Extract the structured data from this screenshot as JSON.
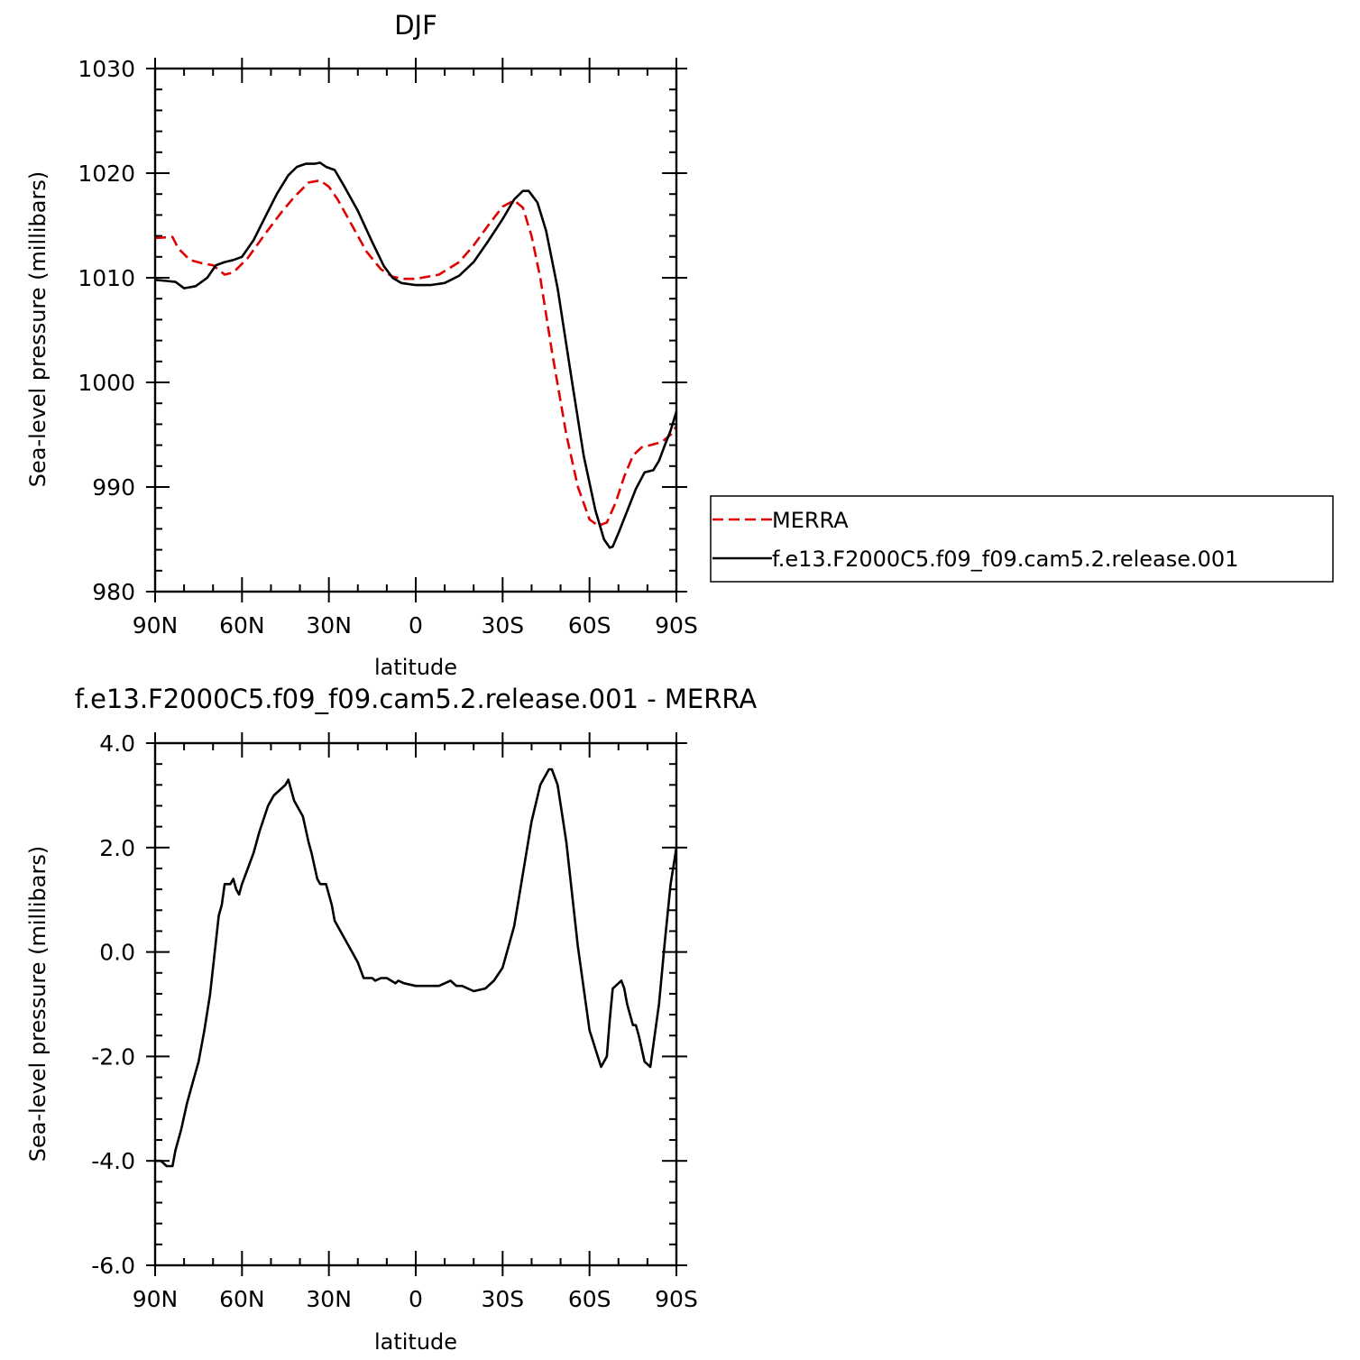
{
  "chart_data": [
    {
      "type": "line",
      "title": "DJF",
      "xlabel": "latitude",
      "ylabel": "Sea-level pressure (millibars)",
      "xlim": [
        90,
        -90
      ],
      "ylim": [
        980,
        1030
      ],
      "xticks": [
        {
          "value": 90,
          "label": "90N"
        },
        {
          "value": 60,
          "label": "60N"
        },
        {
          "value": 30,
          "label": "30N"
        },
        {
          "value": 0,
          "label": "0"
        },
        {
          "value": -30,
          "label": "30S"
        },
        {
          "value": -60,
          "label": "60S"
        },
        {
          "value": -90,
          "label": "90S"
        }
      ],
      "yticks": [
        {
          "value": 1030,
          "label": "1030"
        },
        {
          "value": 1020,
          "label": "1020"
        },
        {
          "value": 1010,
          "label": "1010"
        },
        {
          "value": 1000,
          "label": "1000"
        },
        {
          "value": 990,
          "label": "990"
        },
        {
          "value": 980,
          "label": "980"
        }
      ],
      "legend_position": "right, outside plot",
      "series": [
        {
          "name": "MERRA",
          "color": "#e00000",
          "dash": true,
          "x": [
            90,
            84,
            82,
            78,
            74,
            70,
            66,
            63,
            58,
            52,
            46,
            42,
            37,
            33,
            30,
            27,
            22,
            17,
            12,
            8,
            4,
            0,
            -8,
            -15,
            -20,
            -25,
            -30,
            -34,
            -37,
            -40,
            -43,
            -47,
            -52,
            -56,
            -60,
            -63,
            -66,
            -69,
            -72,
            -75,
            -78,
            -81,
            -85,
            -88,
            -90
          ],
          "y": [
            1013.8,
            1013.9,
            1012.8,
            1011.7,
            1011.4,
            1011.2,
            1010.3,
            1010.5,
            1011.9,
            1014.2,
            1016.4,
            1017.7,
            1019.1,
            1019.3,
            1018.7,
            1017.5,
            1015.0,
            1012.5,
            1010.8,
            1010.1,
            1009.9,
            1009.9,
            1010.3,
            1011.5,
            1013.1,
            1015.0,
            1016.8,
            1017.4,
            1016.7,
            1014.0,
            1010.0,
            1003.0,
            995.0,
            990.0,
            986.9,
            986.3,
            986.6,
            988.5,
            991.0,
            993.0,
            993.8,
            994.0,
            994.3,
            995.0,
            995.8
          ]
        },
        {
          "name": "f.e13.F2000C5.f09_f09.cam5.2.release.001",
          "color": "#000000",
          "dash": false,
          "x": [
            90,
            86,
            83,
            80,
            76,
            72,
            69,
            66,
            63,
            60,
            56,
            52,
            48,
            44,
            41,
            38,
            35,
            33,
            31,
            28,
            25,
            20,
            15,
            11,
            8,
            5,
            0,
            -5,
            -10,
            -15,
            -20,
            -25,
            -30,
            -34,
            -37,
            -39,
            -42,
            -45,
            -49,
            -54,
            -58,
            -62,
            -65,
            -67,
            -68,
            -70,
            -73,
            -76,
            -79,
            -82,
            -84,
            -86,
            -88,
            -90
          ],
          "y": [
            1009.8,
            1009.7,
            1009.6,
            1009.0,
            1009.2,
            1010.0,
            1011.2,
            1011.5,
            1011.7,
            1012.0,
            1013.6,
            1015.8,
            1018.0,
            1019.8,
            1020.6,
            1020.9,
            1020.9,
            1021.0,
            1020.6,
            1020.3,
            1018.9,
            1016.4,
            1013.4,
            1011.1,
            1010.0,
            1009.5,
            1009.3,
            1009.3,
            1009.5,
            1010.2,
            1011.5,
            1013.5,
            1015.6,
            1017.5,
            1018.3,
            1018.3,
            1017.2,
            1014.5,
            1009.0,
            1000.0,
            993.0,
            987.8,
            985.0,
            984.2,
            984.3,
            985.6,
            987.7,
            989.8,
            991.4,
            991.6,
            992.5,
            994.0,
            995.4,
            997.2
          ]
        }
      ]
    },
    {
      "type": "line",
      "title": "f.e13.F2000C5.f09_f09.cam5.2.release.001 - MERRA",
      "xlabel": "latitude",
      "ylabel": "Sea-level pressure (millibars)",
      "xlim": [
        90,
        -90
      ],
      "ylim": [
        -6,
        4
      ],
      "xticks": [
        {
          "value": 90,
          "label": "90N"
        },
        {
          "value": 60,
          "label": "60N"
        },
        {
          "value": 30,
          "label": "30N"
        },
        {
          "value": 0,
          "label": "0"
        },
        {
          "value": -30,
          "label": "30S"
        },
        {
          "value": -60,
          "label": "60S"
        },
        {
          "value": -90,
          "label": "90S"
        }
      ],
      "yticks": [
        {
          "value": 4,
          "label": "4.0"
        },
        {
          "value": 2,
          "label": "2.0"
        },
        {
          "value": 0,
          "label": "0.0"
        },
        {
          "value": -2,
          "label": "-2.0"
        },
        {
          "value": -4,
          "label": "-4.0"
        },
        {
          "value": -6,
          "label": "-6.0"
        }
      ],
      "series": [
        {
          "color": "#000000",
          "dash": false,
          "x": [
            90,
            88,
            86,
            84,
            83,
            81,
            79,
            77,
            75,
            73,
            71,
            69,
            68,
            67,
            66,
            64,
            63,
            62,
            61,
            60,
            58,
            56,
            54,
            51,
            49,
            47,
            45,
            44,
            43,
            42,
            41,
            39,
            37,
            36,
            34,
            33,
            31,
            29,
            28,
            27,
            25,
            22,
            20,
            18,
            15,
            14,
            12,
            10,
            7,
            6,
            4,
            0,
            -4,
            -8,
            -12,
            -14,
            -16,
            -20,
            -24,
            -27,
            -30,
            -34,
            -37,
            -40,
            -43,
            -46,
            -47,
            -49,
            -52,
            -56,
            -60,
            -64,
            -66,
            -67,
            -68,
            -70,
            -71,
            -72,
            -73,
            -75,
            -76,
            -77,
            -79,
            -81,
            -82,
            -84,
            -86,
            -88,
            -90
          ],
          "y": [
            -4.0,
            -4.0,
            -4.1,
            -4.1,
            -3.8,
            -3.4,
            -2.9,
            -2.5,
            -2.1,
            -1.5,
            -0.8,
            0.2,
            0.7,
            0.9,
            1.3,
            1.3,
            1.4,
            1.2,
            1.1,
            1.3,
            1.6,
            1.9,
            2.3,
            2.8,
            3.0,
            3.1,
            3.2,
            3.3,
            3.1,
            2.9,
            2.8,
            2.6,
            2.1,
            1.9,
            1.4,
            1.3,
            1.3,
            0.9,
            0.6,
            0.5,
            0.3,
            0.0,
            -0.2,
            -0.5,
            -0.5,
            -0.55,
            -0.5,
            -0.5,
            -0.6,
            -0.55,
            -0.6,
            -0.65,
            -0.65,
            -0.65,
            -0.55,
            -0.65,
            -0.65,
            -0.75,
            -0.7,
            -0.55,
            -0.3,
            0.5,
            1.5,
            2.5,
            3.2,
            3.5,
            3.5,
            3.2,
            2.1,
            0.1,
            -1.5,
            -2.2,
            -2.0,
            -1.3,
            -0.7,
            -0.6,
            -0.55,
            -0.7,
            -1.0,
            -1.4,
            -1.4,
            -1.6,
            -2.1,
            -2.2,
            -1.8,
            -1.0,
            0.2,
            1.3,
            2.0
          ]
        }
      ]
    }
  ]
}
